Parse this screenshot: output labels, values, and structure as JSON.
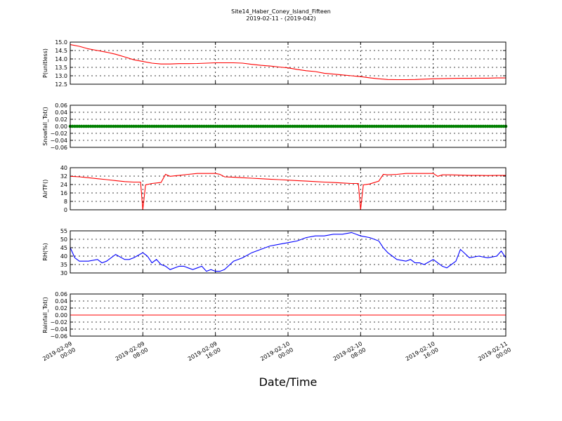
{
  "figure": {
    "title_line1": "Site14_Haber_Coney_Island_Fifteen",
    "title_line2": "2019-02-11 - (2019-042)",
    "xlabel": "Date/Time"
  },
  "chart_data": [
    {
      "type": "line",
      "ylabel": "P(unitless)",
      "ylim": [
        12.5,
        15.0
      ],
      "yticks": [
        "15.0",
        "14.5",
        "14.0",
        "13.5",
        "13.0",
        "12.5"
      ],
      "xlim": [
        "2019-02-09 00:00",
        "2019-02-11 00:00"
      ],
      "grid": true,
      "series": [
        {
          "color": "#ff0000",
          "x_hours": [
            0,
            1,
            2,
            3,
            4,
            5,
            6,
            7,
            8,
            9,
            10,
            11,
            12,
            13,
            14,
            15,
            16,
            17,
            18,
            19,
            20,
            21,
            22,
            23,
            24,
            25,
            26,
            27,
            28,
            29,
            30,
            31,
            32,
            33,
            34,
            35,
            36,
            37,
            38,
            39,
            40,
            41,
            42,
            43,
            44,
            45,
            46,
            47,
            48
          ],
          "values": [
            14.85,
            14.75,
            14.6,
            14.5,
            14.4,
            14.28,
            14.12,
            13.95,
            13.85,
            13.75,
            13.7,
            13.7,
            13.72,
            13.72,
            13.73,
            13.75,
            13.77,
            13.77,
            13.77,
            13.75,
            13.68,
            13.62,
            13.58,
            13.52,
            13.47,
            13.38,
            13.3,
            13.25,
            13.15,
            13.1,
            13.05,
            13.0,
            12.95,
            12.88,
            12.82,
            12.78,
            12.77,
            12.77,
            12.78,
            12.8,
            12.82,
            12.83,
            12.84,
            12.85,
            12.85,
            12.86,
            12.86,
            12.87,
            12.87
          ]
        }
      ]
    },
    {
      "type": "scatter",
      "ylabel": "Snowfall_Tot()",
      "ylim": [
        -0.06,
        0.06
      ],
      "yticks": [
        "0.06",
        "0.04",
        "0.02",
        "0.00",
        "−0.02",
        "−0.04",
        "−0.06"
      ],
      "xlim": [
        "2019-02-09 00:00",
        "2019-02-11 00:00"
      ],
      "grid": true,
      "series": [
        {
          "color": "#008000",
          "constant_value": 0.0,
          "x_hours_range": [
            0,
            48
          ]
        }
      ]
    },
    {
      "type": "line",
      "ylabel": "AirTF()",
      "ylim": [
        -4,
        40
      ],
      "yticks": [
        "40",
        "32",
        "24",
        "16",
        "8",
        "0"
      ],
      "xlim": [
        "2019-02-09 00:00",
        "2019-02-11 00:00"
      ],
      "grid": true,
      "series": [
        {
          "color": "#ff0000",
          "x_hours": [
            0,
            1,
            2,
            3,
            4,
            5,
            6,
            7,
            7.75,
            8,
            8.3,
            9,
            10,
            10.5,
            11,
            12,
            13,
            14,
            15,
            16,
            16.5,
            17,
            18,
            19,
            20,
            21,
            22,
            23,
            24,
            25,
            26,
            27,
            28,
            29,
            30,
            31,
            31.75,
            32,
            32.3,
            33,
            34,
            34.5,
            35,
            36,
            37,
            38,
            39,
            40,
            40.5,
            41,
            42,
            43,
            44,
            45,
            46,
            47,
            48
          ],
          "values": [
            31,
            30.5,
            29.5,
            28.5,
            27.5,
            26.5,
            25.5,
            25,
            25,
            -4,
            22,
            23.5,
            24.5,
            33,
            31,
            32,
            33,
            34,
            34,
            34,
            33,
            30.5,
            30,
            29.5,
            29,
            28.5,
            28,
            27.5,
            27,
            26.5,
            26,
            25.5,
            25,
            24.5,
            24,
            23.5,
            23.5,
            -4,
            22,
            23,
            26,
            33,
            32.5,
            33,
            34,
            34,
            34,
            34,
            31,
            32.5,
            32.5,
            32.2,
            32,
            32,
            31.8,
            32,
            32
          ]
        }
      ]
    },
    {
      "type": "line",
      "ylabel": "RH(%)",
      "ylim": [
        30,
        55
      ],
      "yticks": [
        "55",
        "50",
        "45",
        "40",
        "35",
        "30"
      ],
      "xlim": [
        "2019-02-09 00:00",
        "2019-02-11 00:00"
      ],
      "grid": true,
      "series": [
        {
          "color": "#0000ff",
          "x_hours": [
            0,
            0.5,
            1,
            2,
            3,
            3.5,
            4,
            5,
            6,
            6.5,
            7,
            8,
            8.5,
            9,
            9.5,
            10,
            10.5,
            11,
            12,
            12.5,
            13,
            13.5,
            14,
            14.5,
            15,
            15.5,
            16,
            16.5,
            17,
            18,
            19,
            20,
            21,
            22,
            23,
            24,
            25,
            26,
            27,
            28,
            29,
            30,
            31,
            32,
            33,
            34,
            34.5,
            35,
            36,
            37,
            37.5,
            38,
            38.5,
            39,
            40,
            41,
            41.5,
            42,
            42.5,
            43,
            44,
            45,
            46,
            47,
            47.5,
            48
          ],
          "values": [
            45,
            39,
            37,
            37,
            38,
            36,
            37,
            41,
            38,
            38,
            39,
            42,
            40,
            36,
            38,
            35,
            34,
            32,
            34,
            34,
            33,
            32,
            33,
            34,
            31,
            32,
            31,
            31,
            32,
            37,
            39,
            42,
            44,
            46,
            47,
            48,
            49,
            51,
            52,
            52,
            53,
            53,
            54,
            52,
            51,
            49,
            45,
            42,
            38,
            37,
            38,
            36,
            36,
            35,
            38,
            34,
            33,
            35,
            37,
            44,
            39,
            40,
            39,
            40,
            43,
            39
          ]
        }
      ]
    },
    {
      "type": "line",
      "ylabel": "Rainfall_Tot()",
      "ylim": [
        -0.06,
        0.06
      ],
      "yticks": [
        "0.06",
        "0.04",
        "0.02",
        "0.00",
        "−0.02",
        "−0.04",
        "−0.06"
      ],
      "xlim": [
        "2019-02-09 00:00",
        "2019-02-11 00:00"
      ],
      "grid": true,
      "series": [
        {
          "color": "#ff0000",
          "constant_value": 0.0,
          "x_hours_range": [
            0,
            48
          ]
        }
      ]
    }
  ],
  "x_ticks": [
    {
      "line1": "2019-02-09",
      "line2": "00:00"
    },
    {
      "line1": "2019-02-09",
      "line2": "08:00"
    },
    {
      "line1": "2019-02-09",
      "line2": "16:00"
    },
    {
      "line1": "2019-02-10",
      "line2": "00:00"
    },
    {
      "line1": "2019-02-10",
      "line2": "08:00"
    },
    {
      "line1": "2019-02-10",
      "line2": "16:00"
    },
    {
      "line1": "2019-02-11",
      "line2": "00:00"
    }
  ]
}
